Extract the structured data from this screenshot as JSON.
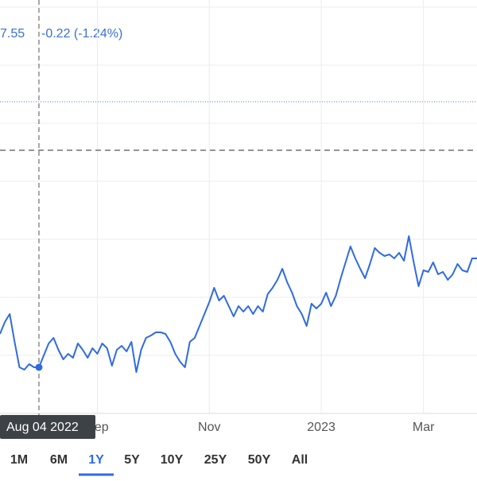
{
  "chart_data": {
    "type": "line",
    "price": "7.55",
    "change": "-0.22 (-1.24%)",
    "tooltip": "Aug 04 2022",
    "highlight_index": 8,
    "categories": [
      null,
      null,
      null,
      null,
      null,
      null,
      null,
      null,
      null,
      null,
      null,
      null,
      null,
      null,
      null,
      null,
      null,
      null,
      null,
      null,
      "Sep",
      null,
      null,
      null,
      null,
      null,
      null,
      null,
      null,
      null,
      null,
      null,
      null,
      null,
      null,
      null,
      null,
      null,
      null,
      null,
      null,
      null,
      null,
      "Nov",
      null,
      null,
      null,
      null,
      null,
      null,
      null,
      null,
      null,
      null,
      null,
      null,
      null,
      null,
      null,
      null,
      null,
      null,
      null,
      null,
      null,
      null,
      "2023",
      null,
      null,
      null,
      null,
      null,
      null,
      null,
      null,
      null,
      null,
      null,
      null,
      null,
      null,
      null,
      null,
      null,
      null,
      null,
      null,
      "Mar",
      null,
      null,
      null,
      null,
      null,
      null,
      null,
      null,
      null,
      null,
      null
    ],
    "series": [
      {
        "color": "#2f6be0",
        "values": [
          100,
          115,
          125,
          90,
          58,
          55,
          62,
          58,
          58,
          73,
          88,
          95,
          80,
          68,
          75,
          70,
          88,
          80,
          70,
          82,
          75,
          88,
          82,
          60,
          80,
          85,
          78,
          90,
          52,
          80,
          95,
          98,
          102,
          102,
          100,
          90,
          75,
          65,
          58,
          90,
          95,
          110,
          125,
          140,
          158,
          142,
          148,
          135,
          122,
          135,
          128,
          135,
          125,
          135,
          128,
          150,
          158,
          168,
          182,
          165,
          152,
          135,
          125,
          110,
          138,
          132,
          138,
          152,
          135,
          148,
          170,
          190,
          210,
          195,
          182,
          170,
          188,
          208,
          202,
          198,
          200,
          195,
          202,
          192,
          223,
          190,
          160,
          180,
          178,
          190,
          175,
          178,
          168,
          175,
          188,
          180,
          178,
          195,
          195
        ]
      }
    ],
    "ylim": [
      0,
      520
    ],
    "yticks": [
      73,
      146,
      219,
      292,
      365,
      438,
      511
    ],
    "grid": true,
    "reference_lines": [
      {
        "value": 392,
        "style": "dotted",
        "color": "#4a7be8"
      },
      {
        "value": 331,
        "style": "dashed",
        "color": "#555555"
      }
    ],
    "ranges": [
      "1M",
      "6M",
      "1Y",
      "5Y",
      "10Y",
      "25Y",
      "50Y",
      "All"
    ],
    "selected_range": 2
  }
}
